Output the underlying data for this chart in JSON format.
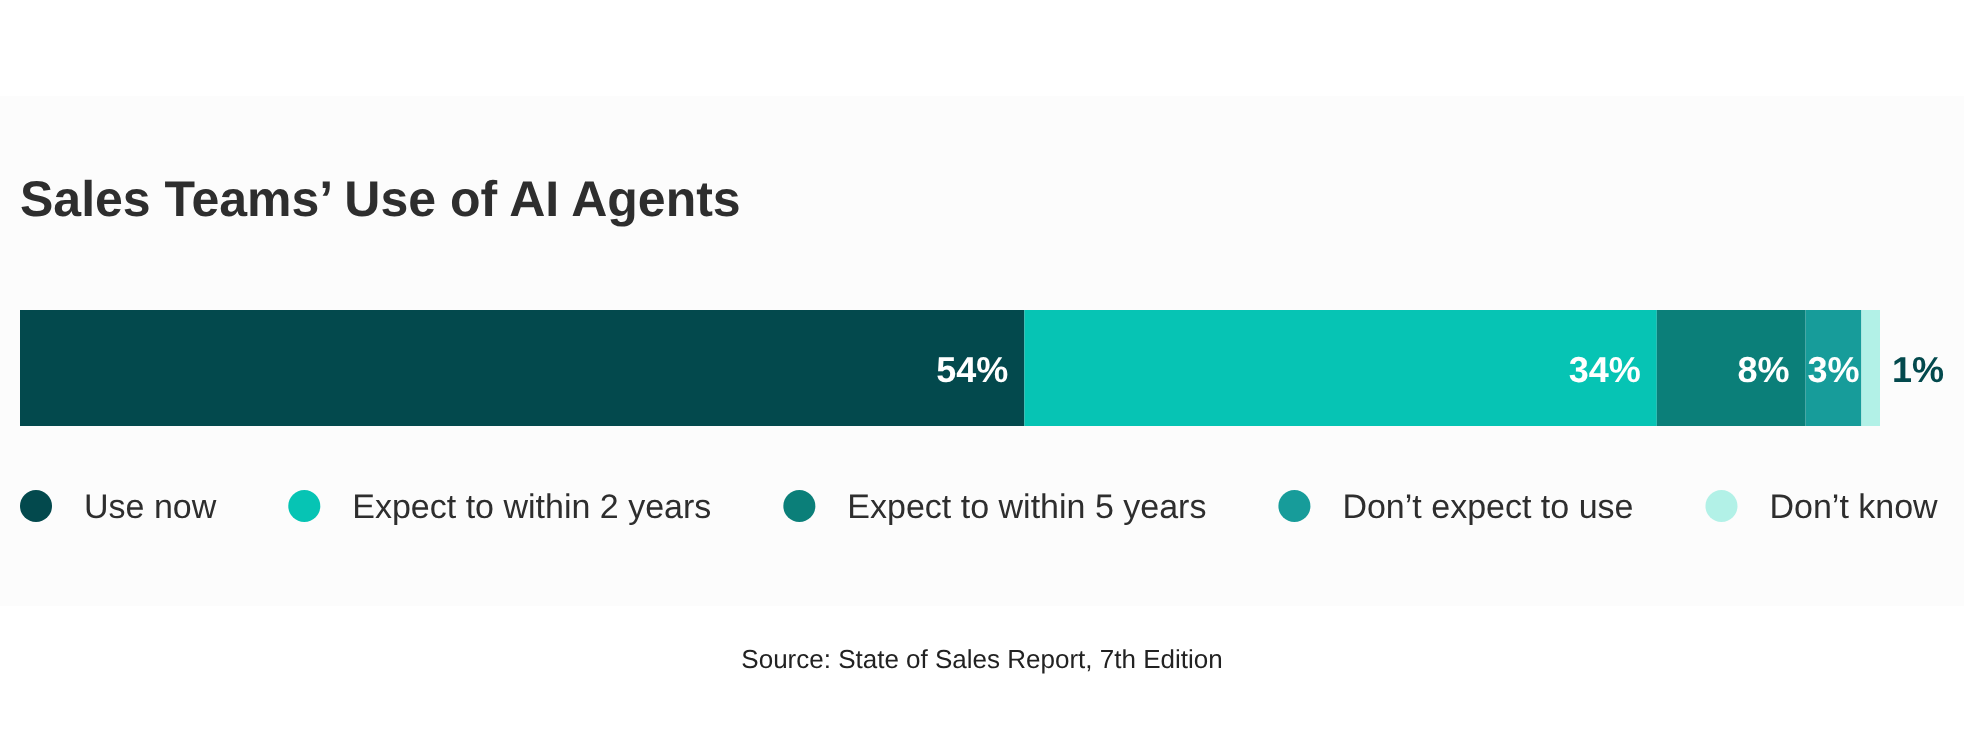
{
  "chart_data": {
    "type": "bar",
    "title": "Sales Teams’ Use of AI Agents",
    "orientation": "horizontal",
    "stacked": true,
    "categories": [
      null
    ],
    "series": [
      {
        "name": "Use now",
        "color": "#03494d",
        "values": [
          54
        ],
        "value_labels": [
          "54%"
        ]
      },
      {
        "name": "Expect to within 2 years",
        "color": "#06c4b4",
        "values": [
          34
        ],
        "value_labels": [
          "34%"
        ]
      },
      {
        "name": "Expect to within 5 years",
        "color": "#0b7f79",
        "values": [
          8
        ],
        "value_labels": [
          "8%"
        ]
      },
      {
        "name": "Don’t expect to use",
        "color": "#179c9a",
        "values": [
          3
        ],
        "value_labels": [
          "3%"
        ]
      },
      {
        "name": "Don’t know",
        "color": "#b2f1e7",
        "values": [
          1
        ],
        "value_labels": [
          "1%"
        ]
      }
    ],
    "legend": "bottom",
    "annotations": [
      "Source: State of Sales Report, 7th Edition"
    ]
  }
}
